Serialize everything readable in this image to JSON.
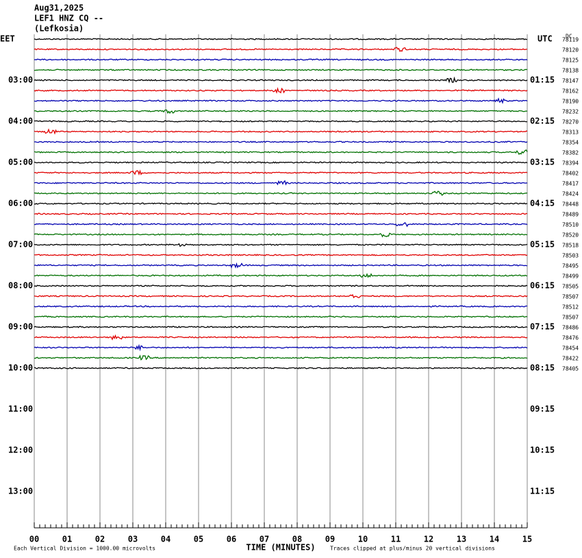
{
  "header": [
    "Aug31,2025",
    "LEF1 HNZ CQ --",
    "(Lefkosia)"
  ],
  "left_label": "EET",
  "right_label": "UTC",
  "dc_label": "DC",
  "left_times": [
    "03:00",
    "04:00",
    "05:00",
    "06:00",
    "07:00",
    "08:00",
    "09:00",
    "10:00",
    "11:00",
    "12:00",
    "13:00"
  ],
  "right_times": [
    "01:15",
    "02:15",
    "03:15",
    "04:15",
    "05:15",
    "06:15",
    "07:15",
    "08:15",
    "09:15",
    "10:15",
    "11:15"
  ],
  "dc_values": [
    "78119",
    "78120",
    "78125",
    "78138",
    "78147",
    "78162",
    "78190",
    "78232",
    "78270",
    "78313",
    "78354",
    "78382",
    "78394",
    "78402",
    "78417",
    "78424",
    "78448",
    "78489",
    "78510",
    "78520",
    "78518",
    "78503",
    "78495",
    "78499",
    "78505",
    "78507",
    "78512",
    "78507",
    "78486",
    "78476",
    "78454",
    "78422",
    "78405"
  ],
  "x_ticks": [
    "00",
    "01",
    "02",
    "03",
    "04",
    "05",
    "06",
    "07",
    "08",
    "09",
    "10",
    "11",
    "12",
    "13",
    "14",
    "15"
  ],
  "x_title": "TIME (MINUTES)",
  "footer_left": "Each Vertical Division = 1000.00 microvolts",
  "footer_right": "Traces clipped at plus/minus 20 vertical divisions"
}
